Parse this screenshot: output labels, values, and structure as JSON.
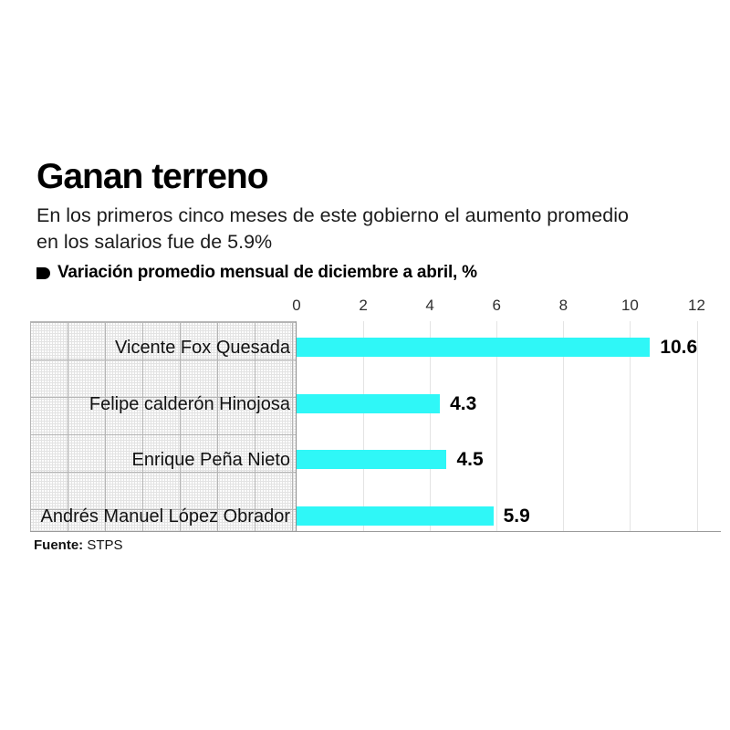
{
  "page": {
    "title": "Ganan terreno",
    "subtitle": "En los primeros cinco meses de este gobierno el aumento promedio\nen los salarios fue de 5.9%",
    "source_label": "Fuente:",
    "source_value": "STPS"
  },
  "legend": {
    "label": "Variación promedio mensual de diciembre a abril, %"
  },
  "chart_data": {
    "type": "bar",
    "orientation": "horizontal",
    "title": "Ganan terreno",
    "legend_label": "Variación promedio mensual de diciembre a abril, %",
    "categories": [
      "Vicente Fox Quesada",
      "Felipe calderón Hinojosa",
      "Enrique Peña Nieto",
      "Andrés Manuel López Obrador"
    ],
    "values": [
      10.6,
      4.3,
      4.5,
      5.9
    ],
    "value_labels": [
      "10.6",
      "4.3",
      "4.5",
      "5.9"
    ],
    "x_ticks": [
      "0",
      "2",
      "4",
      "6",
      "8",
      "10",
      "12"
    ],
    "xlim": [
      0,
      12
    ],
    "grid": true,
    "legend_position": "top-left",
    "bar_color": "#2ff7f7",
    "source": "STPS"
  }
}
